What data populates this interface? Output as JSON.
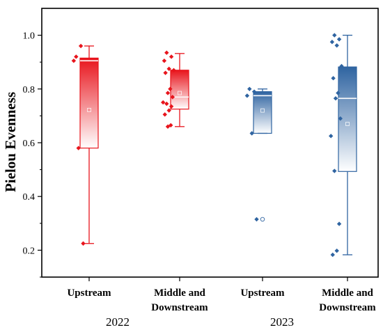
{
  "chart_data": {
    "type": "box",
    "ylabel": "Pielou Evenness",
    "xlabel": "",
    "ylim": [
      0.1,
      1.1
    ],
    "yticks": [
      "0.2",
      "0.4",
      "0.6",
      "0.8",
      "1.0"
    ],
    "ytick_values": [
      0.2,
      0.4,
      0.6,
      0.8,
      1.0
    ],
    "grid": false,
    "categories": [
      {
        "line1": "Upstream",
        "line2": ""
      },
      {
        "line1": "Middle and",
        "line2": "Downstream"
      },
      {
        "line1": "Upstream",
        "line2": ""
      },
      {
        "line1": "Middle and",
        "line2": "Downstream"
      }
    ],
    "year_groups": [
      {
        "label": "2022",
        "categories": [
          0,
          1
        ]
      },
      {
        "label": "2023",
        "categories": [
          2,
          3
        ]
      }
    ],
    "colors": {
      "2022": "#e8141c",
      "2023": "#2f64a1"
    },
    "boxes": [
      {
        "group": "2022",
        "whisker_low": 0.225,
        "q1": 0.58,
        "median": 0.905,
        "mean": 0.722,
        "q3": 0.915,
        "whisker_high": 0.96,
        "points": [
          0.92,
          0.96,
          0.905,
          0.58,
          0.225
        ],
        "outliers": []
      },
      {
        "group": "2022",
        "whisker_low": 0.66,
        "q1": 0.725,
        "median": 0.77,
        "mean": 0.785,
        "q3": 0.87,
        "whisker_high": 0.932,
        "points": [
          0.935,
          0.92,
          0.905,
          0.875,
          0.87,
          0.86,
          0.8,
          0.785,
          0.77,
          0.75,
          0.745,
          0.735,
          0.72,
          0.705,
          0.665,
          0.66
        ],
        "outliers": []
      },
      {
        "group": "2023",
        "whisker_low": 0.635,
        "q1": 0.635,
        "median": 0.775,
        "mean": 0.72,
        "q3": 0.79,
        "whisker_high": 0.8,
        "points": [
          0.8,
          0.79,
          0.775,
          0.635,
          0.315
        ],
        "outliers": [
          0.315
        ]
      },
      {
        "group": "2023",
        "whisker_low": 0.183,
        "q1": 0.493,
        "median": 0.765,
        "mean": 0.67,
        "q3": 0.882,
        "whisker_high": 1.0,
        "points": [
          1.0,
          0.985,
          0.975,
          0.962,
          0.885,
          0.84,
          0.785,
          0.765,
          0.69,
          0.625,
          0.495,
          0.298,
          0.198,
          0.183
        ],
        "outliers": []
      }
    ]
  }
}
